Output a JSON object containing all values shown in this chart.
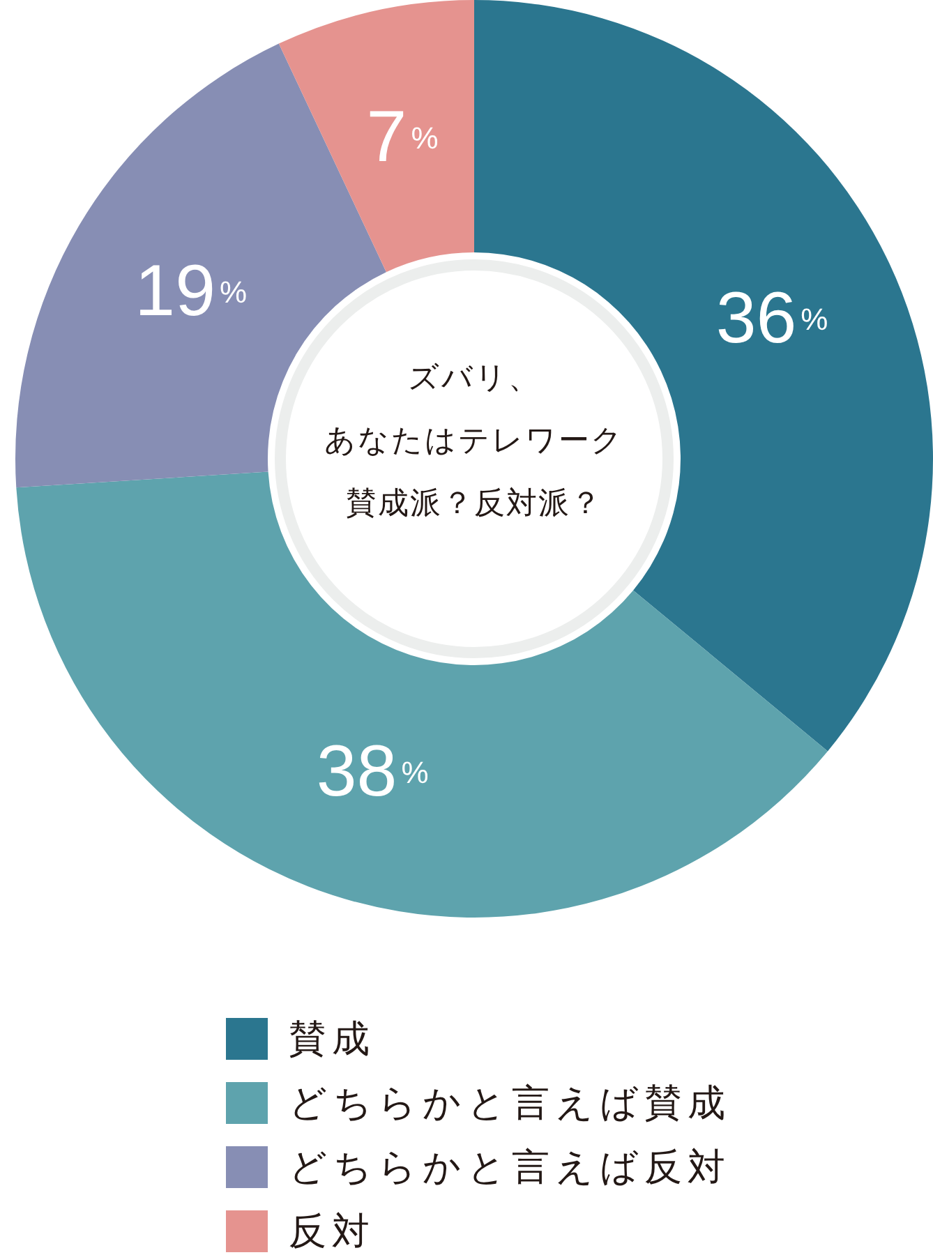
{
  "chart_data": {
    "type": "donut",
    "title": "ズバリ、あなたはテレワーク賛成派？反対派？",
    "categories": [
      "賛成",
      "どちらかと言えば賛成",
      "どちらかと言えば反対",
      "反対"
    ],
    "values": [
      36,
      38,
      19,
      7
    ],
    "colors": [
      "#2b768f",
      "#5ea3ad",
      "#878eb4",
      "#e5938f"
    ],
    "value_labels": [
      "36%",
      "38%",
      "19%",
      "7%"
    ],
    "legend": "bottom"
  }
}
